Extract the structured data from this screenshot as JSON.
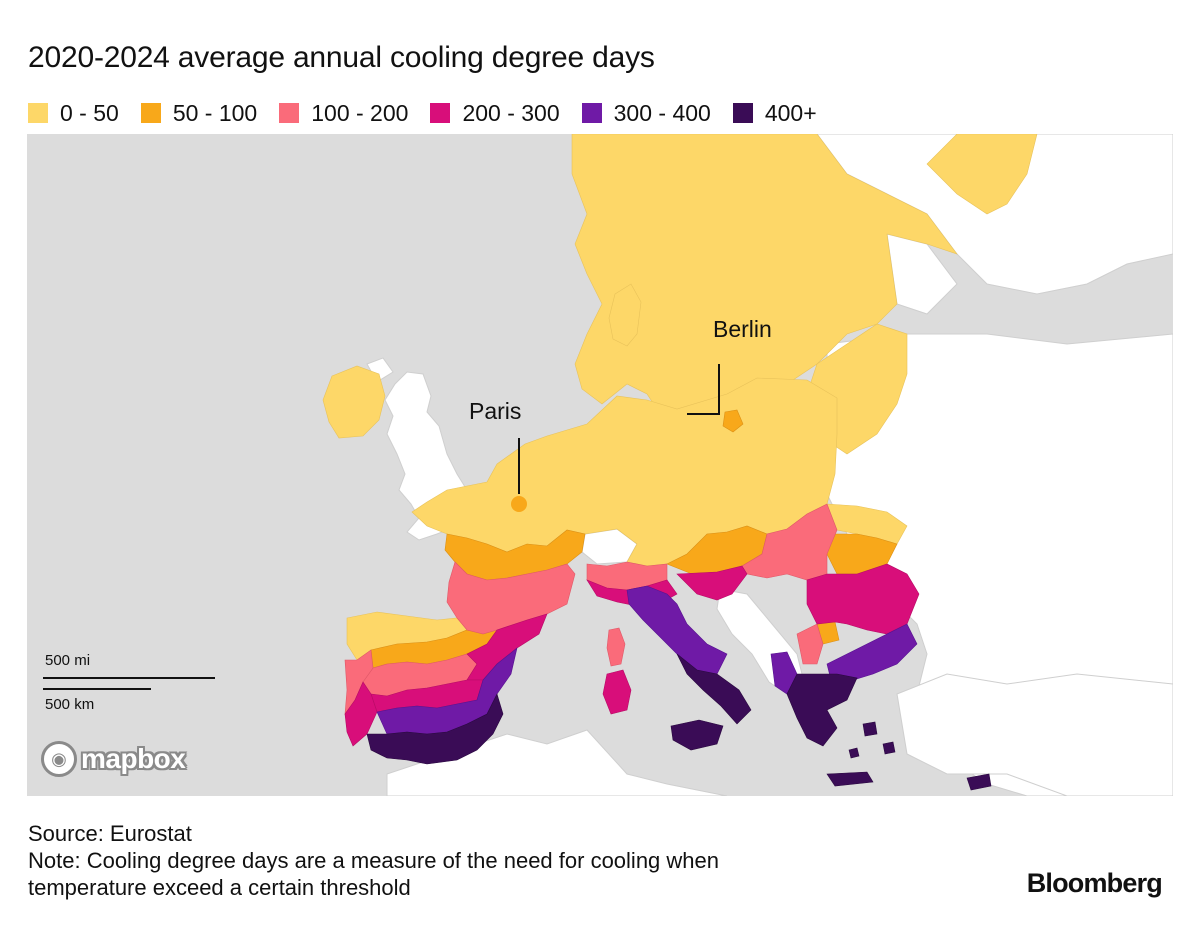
{
  "title": "2020-2024 average annual cooling degree days",
  "legend": [
    {
      "label": "0 - 50",
      "color": "#fdd768"
    },
    {
      "label": "50 - 100",
      "color": "#f8a81a"
    },
    {
      "label": "100 - 200",
      "color": "#fa6b7a"
    },
    {
      "label": "200 - 300",
      "color": "#d80e7a"
    },
    {
      "label": "300 - 400",
      "color": "#6f1aa6"
    },
    {
      "label": "400+",
      "color": "#3a0c56"
    }
  ],
  "map": {
    "labels": {
      "paris": "Paris",
      "berlin": "Berlin"
    },
    "scale": {
      "miles": "500 mi",
      "km": "500 km"
    },
    "attribution": "mapbox",
    "colors": {
      "land": "#ffffff",
      "water": "#dcdcdc",
      "nodata": "#ffffff"
    }
  },
  "footer": {
    "source": "Source: Eurostat",
    "note_line1": "Note: Cooling degree days are a measure of the need for cooling when",
    "note_line2": "temperature exceed a certain threshold"
  },
  "brand": "Bloomberg"
}
